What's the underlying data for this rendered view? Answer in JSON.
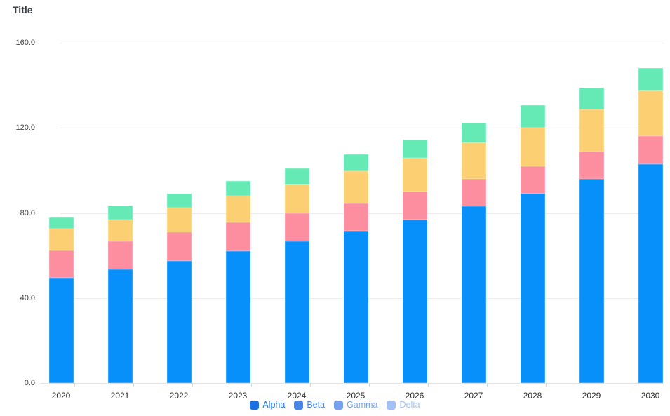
{
  "header": {
    "title": "Title"
  },
  "chart_data": {
    "type": "bar",
    "stacked": true,
    "title": "Title",
    "xlabel": "",
    "ylabel": "",
    "categories": [
      "2020",
      "2021",
      "2022",
      "2023",
      "2024",
      "2025",
      "2026",
      "2027",
      "2028",
      "2029",
      "2030"
    ],
    "series": [
      {
        "name": "Alpha",
        "bar_color": "#0890fa",
        "legend_color": "#1a6fe4",
        "values": [
          49.5,
          53.5,
          57.5,
          62,
          66.5,
          71.5,
          77,
          83,
          89,
          96,
          103
        ]
      },
      {
        "name": "Beta",
        "bar_color": "#fc8ea0",
        "legend_color": "#4885e9",
        "values": [
          13,
          13,
          13.5,
          13.5,
          13.5,
          13,
          13,
          13,
          13,
          13,
          13
        ]
      },
      {
        "name": "Gamma",
        "bar_color": "#fccf73",
        "legend_color": "#75a1ee",
        "values": [
          10,
          10.5,
          11.5,
          12.5,
          13.5,
          15,
          16,
          17,
          18,
          19.5,
          21.5
        ]
      },
      {
        "name": "Delta",
        "bar_color": "#66eab5",
        "legend_color": "#a3c0f4",
        "values": [
          5.5,
          6.5,
          6.5,
          7,
          7.5,
          8,
          8.5,
          9.5,
          10.5,
          10.5,
          10.5
        ]
      }
    ],
    "ylim": [
      0,
      160
    ],
    "yticks": [
      0,
      40,
      80,
      120,
      160
    ],
    "ytick_labels": [
      "0.0",
      "40.0",
      "80.0",
      "120.0",
      "160.0"
    ],
    "grid": true,
    "legend_position": "bottom",
    "colors": {
      "gridline": "#ececec",
      "axis_line": "#e2e2e2",
      "tick": "#d9d9d9",
      "axis_text": "#3f3f3f",
      "title_text": "#3a3f44"
    }
  }
}
